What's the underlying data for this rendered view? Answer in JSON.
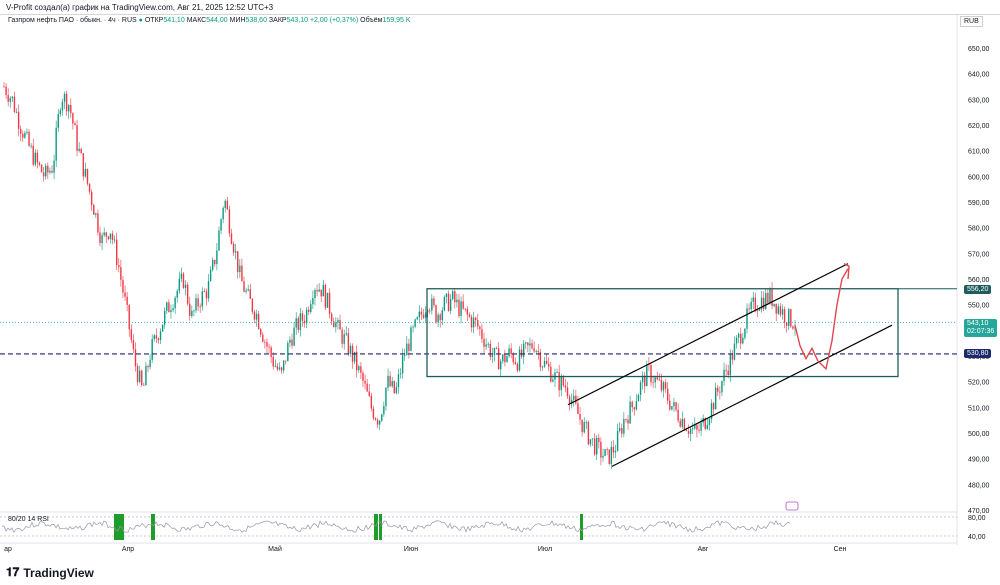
{
  "header": {
    "caption": "V-Profit создал(а) график на TradingView.com, Авг 21, 2025 12:52 UTC+3"
  },
  "legend": {
    "symbol": "Газпром нефть ПАО · обыкн. · 4ч · RUS",
    "open_label": "ОТКР",
    "open": "541,10",
    "high_label": "МАКС",
    "high": "544,00",
    "low_label": "МИН",
    "low": "538,60",
    "close_label": "ЗАКР",
    "close": "543,10",
    "change": "+2,00 (+0,37%)",
    "volume_label": "Объём",
    "volume": "159,95 K"
  },
  "currency": "RUB",
  "price_tags": {
    "upper": "556,20",
    "last": "543,10",
    "countdown": "02:07:36",
    "lower": "530,80"
  },
  "rsi_label": "80/20 14 RSI",
  "footer": {
    "brand": "TradingView"
  },
  "colors": {
    "up": "#089981",
    "down": "#f23645",
    "teal_box": "#1f5d5d",
    "arrow": "#e0474f",
    "last_price": "#26a69a",
    "dashed": "#1a2a6c"
  },
  "chart_data": {
    "type": "candlestick",
    "title": "Газпром нефть ПАО · обыкн. · 4ч · RUS",
    "ylim": [
      470,
      655
    ],
    "y_ticks": [
      "650,00",
      "640,00",
      "630,00",
      "620,00",
      "610,00",
      "600,00",
      "590,00",
      "580,00",
      "570,00",
      "560,00",
      "550,00",
      "540,00",
      "530,00",
      "520,00",
      "510,00",
      "500,00",
      "490,00",
      "480,00",
      "470,00"
    ],
    "x_ticks": [
      "ар",
      "Апр",
      "Май",
      "Июн",
      "Июл",
      "Авг",
      "Сен"
    ],
    "series": [
      {
        "name": "price",
        "path_values": [
          635,
          630,
          620,
          612,
          605,
          600,
          604,
          632,
          628,
          612,
          600,
          588,
          575,
          580,
          566,
          548,
          528,
          516,
          532,
          540,
          548,
          554,
          560,
          545,
          552,
          556,
          570,
          592,
          576,
          560,
          552,
          546,
          536,
          528,
          522,
          536,
          542,
          546,
          558,
          556,
          548,
          540,
          535,
          528,
          520,
          510,
          505,
          520,
          515,
          530,
          538,
          545,
          552,
          546,
          550,
          552,
          548,
          545,
          542,
          536,
          530,
          528,
          531,
          528,
          532,
          535,
          528,
          524,
          520,
          518,
          510,
          503,
          497,
          493,
          490,
          495,
          505,
          510,
          518,
          524,
          520,
          516,
          510,
          506,
          502,
          500,
          505,
          512,
          520,
          528,
          536,
          544,
          550,
          552,
          553,
          549,
          545,
          543
        ]
      }
    ],
    "levels": [
      {
        "name": "upper",
        "value": 556.2
      },
      {
        "name": "last",
        "value": 543.1
      },
      {
        "name": "support",
        "value": 530.8
      }
    ],
    "box": {
      "y_top": 556.2,
      "y_bottom": 522
    },
    "rsi_levels": [
      80,
      40
    ]
  }
}
